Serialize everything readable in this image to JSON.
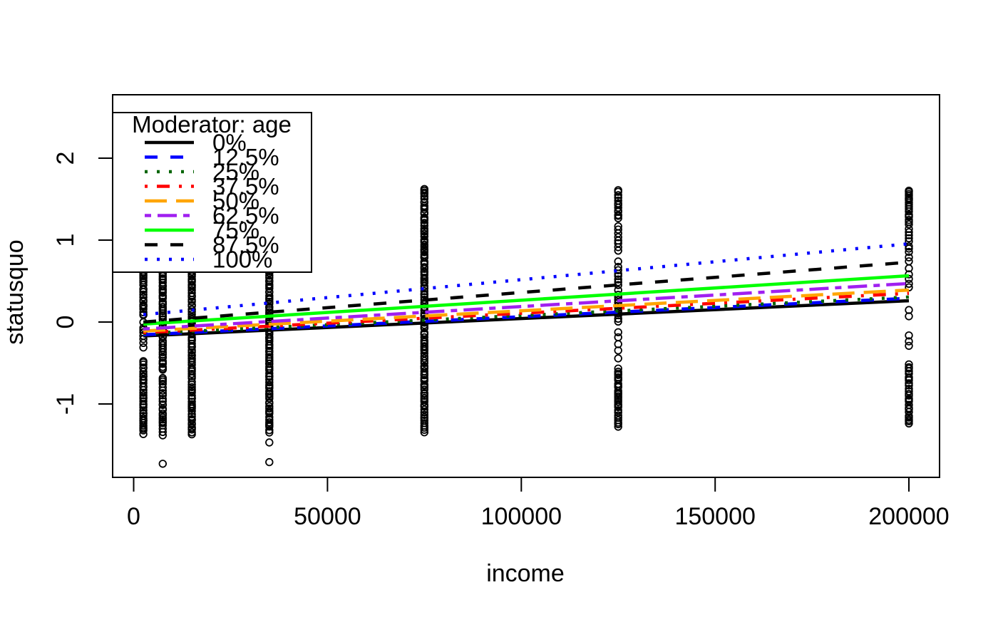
{
  "chart_data": {
    "type": "scatter",
    "title": "",
    "xlabel": "income",
    "ylabel": "statusquo",
    "grid": false,
    "xlim": [
      -5430,
      207900
    ],
    "ylim": [
      -1.896,
      2.774
    ],
    "x_ticks": [
      0,
      50000,
      100000,
      150000,
      200000
    ],
    "x_tick_labels": [
      "0",
      "50000",
      "100000",
      "150000",
      "200000"
    ],
    "y_ticks": [
      -1,
      0,
      1,
      2
    ],
    "y_tick_labels": [
      "-1",
      "0",
      "1",
      "2"
    ],
    "point_color": "#000000",
    "legend": {
      "title": "Moderator: age",
      "position": "topleft"
    },
    "series": [
      {
        "name": "0%",
        "color": "#000000",
        "lty": "solid",
        "x": [
          2500,
          200000
        ],
        "y": [
          -0.17,
          0.26
        ]
      },
      {
        "name": "12.5%",
        "color": "#0000FF",
        "lty": "dashed",
        "x": [
          2500,
          200000
        ],
        "y": [
          -0.155,
          0.29
        ]
      },
      {
        "name": "25%",
        "color": "#006400",
        "lty": "dotted",
        "x": [
          2500,
          200000
        ],
        "y": [
          -0.14,
          0.305
        ]
      },
      {
        "name": "37.5%",
        "color": "#FF0000",
        "lty": "dotdash",
        "x": [
          2500,
          200000
        ],
        "y": [
          -0.13,
          0.35
        ]
      },
      {
        "name": "50%",
        "color": "#FFA500",
        "lty": "longdash",
        "x": [
          2500,
          200000
        ],
        "y": [
          -0.11,
          0.39
        ]
      },
      {
        "name": "62.5%",
        "color": "#A020F0",
        "lty": "twodash",
        "x": [
          2500,
          200000
        ],
        "y": [
          -0.085,
          0.47
        ]
      },
      {
        "name": "75%",
        "color": "#00FF00",
        "lty": "solid",
        "x": [
          2500,
          200000
        ],
        "y": [
          -0.025,
          0.565
        ]
      },
      {
        "name": "87.5%",
        "color": "#000000",
        "lty": "dashed",
        "x": [
          2500,
          200000
        ],
        "y": [
          0.0,
          0.73
        ]
      },
      {
        "name": "100%",
        "color": "#0000FF",
        "lty": "dotted",
        "x": [
          2500,
          200000
        ],
        "y": [
          0.09,
          0.955
        ]
      }
    ],
    "scatter": {
      "x_values": [
        2500,
        7500,
        15000,
        35000,
        75000,
        125000,
        200000
      ],
      "strips": [
        {
          "income": 2500,
          "segments": [
            [
              1.63,
              0.06,
              3
            ],
            [
              -0.01,
              -0.33,
              5
            ],
            [
              -0.48,
              -1.37,
              3
            ]
          ]
        },
        {
          "income": 7500,
          "segments": [
            [
              1.63,
              -0.6,
              3
            ],
            [
              -0.68,
              -1.39,
              3.5
            ]
          ]
        },
        {
          "income": 15000,
          "segments": [
            [
              1.63,
              -1.4,
              3
            ]
          ]
        },
        {
          "income": 35000,
          "segments": [
            [
              1.63,
              -1.35,
              3
            ]
          ]
        },
        {
          "income": 75000,
          "segments": [
            [
              1.63,
              -1.35,
              3
            ]
          ]
        },
        {
          "income": 125000,
          "segments": [
            [
              1.6,
              1.26,
              3
            ],
            [
              1.17,
              0.84,
              5
            ],
            [
              0.73,
              0.36,
              5
            ],
            [
              0.33,
              -0.02,
              4
            ],
            [
              -0.12,
              -0.44,
              9
            ],
            [
              -0.57,
              -1.29,
              3
            ]
          ]
        },
        {
          "income": 200000,
          "segments": [
            [
              1.61,
              1.18,
              3
            ],
            [
              1.13,
              0.72,
              5
            ],
            [
              0.66,
              0.64,
              9
            ],
            [
              0.58,
              0.42,
              6
            ],
            [
              0.14,
              0.0,
              8
            ],
            [
              -0.17,
              -0.33,
              8
            ],
            [
              -0.51,
              -1.26,
              3.5
            ]
          ]
        }
      ],
      "outliers": [
        {
          "income": 7500,
          "statusquo": -1.73
        },
        {
          "income": 35000,
          "statusquo": -1.47
        },
        {
          "income": 35000,
          "statusquo": -1.71
        }
      ]
    }
  }
}
